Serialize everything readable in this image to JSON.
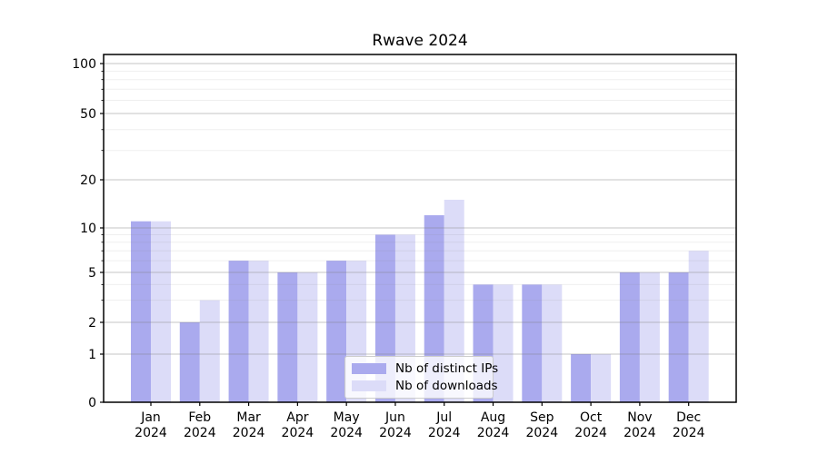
{
  "chart_data": {
    "type": "bar",
    "title": "Rwave 2024",
    "categories": [
      "Jan",
      "Feb",
      "Mar",
      "Apr",
      "May",
      "Jun",
      "Jul",
      "Aug",
      "Sep",
      "Oct",
      "Nov",
      "Dec"
    ],
    "x_tick_second_line": "2024",
    "series": [
      {
        "name": "Nb of distinct IPs",
        "color": "#aaaaee",
        "values": [
          11,
          2,
          6,
          5,
          6,
          9,
          12,
          4,
          4,
          1,
          5,
          5
        ]
      },
      {
        "name": "Nb of downloads",
        "color": "#dcdcf8",
        "values": [
          11,
          3,
          6,
          5,
          6,
          9,
          15,
          4,
          4,
          1,
          5,
          7
        ]
      }
    ],
    "y_axis": {
      "scale": "symlog",
      "ticks": [
        0,
        1,
        2,
        5,
        10,
        20,
        50,
        100
      ],
      "minor_ticks": [
        3,
        4,
        6,
        7,
        8,
        9,
        30,
        40,
        60,
        70,
        80,
        90
      ],
      "range": [
        0,
        115
      ]
    },
    "xlabel": "",
    "ylabel": "",
    "grid": "both",
    "legend_position": "lower center",
    "colors": {
      "major_grid": "rgba(128,128,128,0.45)",
      "minor_grid": "rgba(128,128,128,0.13)",
      "axis": "#000000",
      "background": "#ffffff"
    }
  }
}
